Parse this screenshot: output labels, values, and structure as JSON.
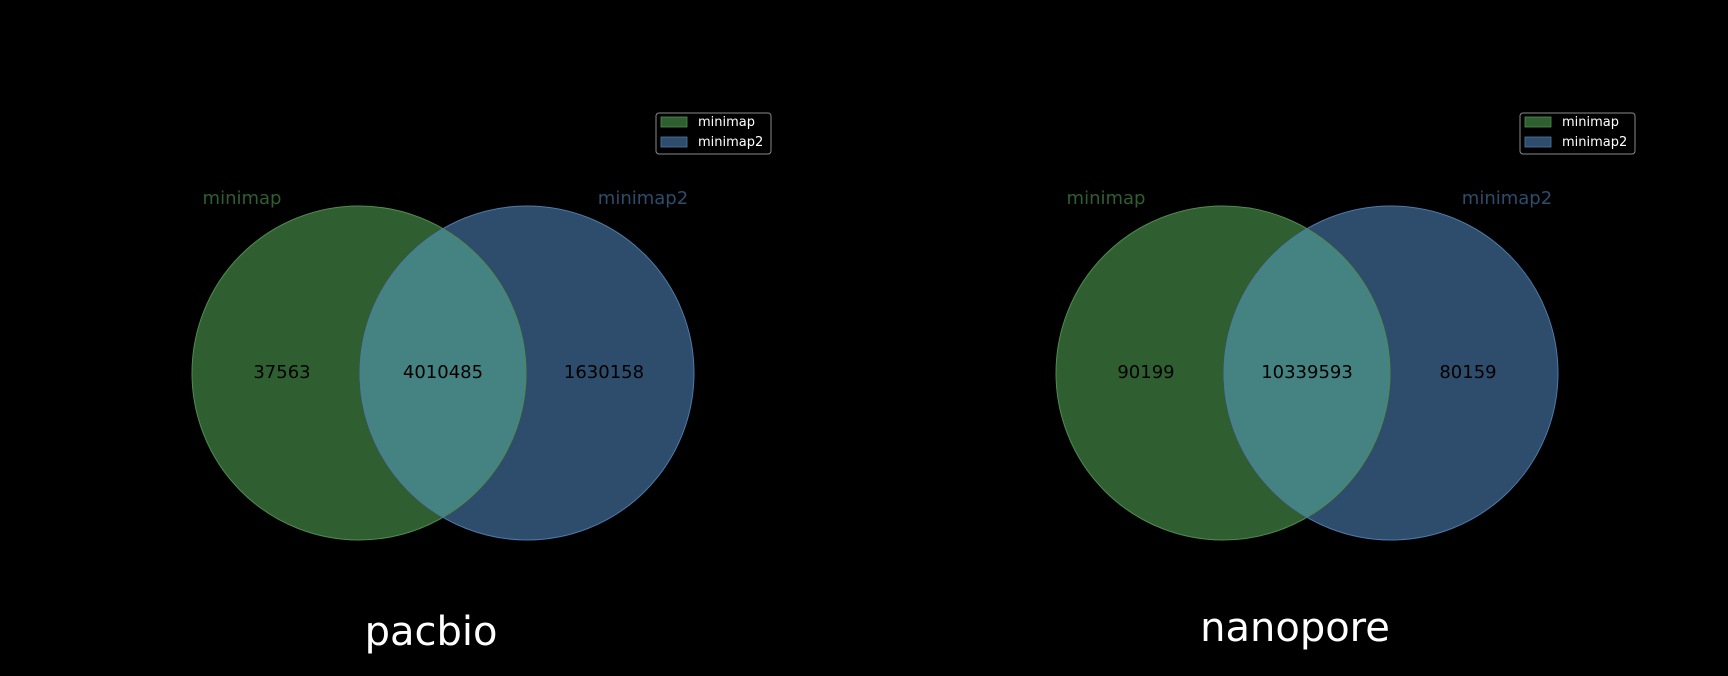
{
  "colors": {
    "background": "#000000",
    "set_a": "#2f5f31",
    "set_b": "#2e4c6b",
    "overlap": "#458282",
    "set_a_label": "#2f5f31",
    "set_b_label": "#2e4c6b",
    "count_text": "#000000",
    "title_text": "#ffffff",
    "legend_text": "#ffffff",
    "legend_border": "#8a8a8a"
  },
  "chart_data": [
    {
      "type": "venn",
      "title": "pacbio",
      "sets": [
        {
          "name": "minimap",
          "label": "minimap",
          "only": "37563"
        },
        {
          "name": "minimap2",
          "label": "minimap2",
          "only": "1630158"
        }
      ],
      "intersection": "4010485",
      "legend": {
        "placement": "top-right",
        "entries": [
          "minimap",
          "minimap2"
        ]
      }
    },
    {
      "type": "venn",
      "title": "nanopore",
      "sets": [
        {
          "name": "minimap",
          "label": "minimap",
          "only": "90199"
        },
        {
          "name": "minimap2",
          "label": "minimap2",
          "only": "80159"
        }
      ],
      "intersection": "10339593",
      "legend": {
        "placement": "top-right",
        "entries": [
          "minimap",
          "minimap2"
        ]
      }
    }
  ]
}
